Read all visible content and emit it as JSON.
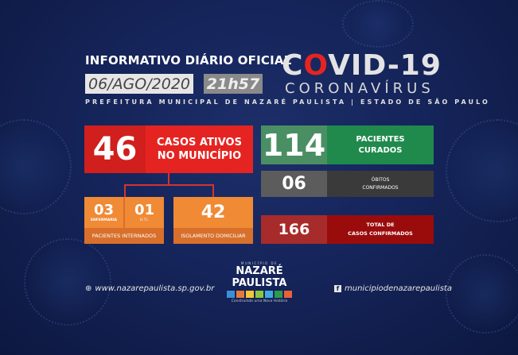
{
  "header": {
    "title": "INFORMATIVO DIÁRIO OFICIAL",
    "date": "06/AGO/2020",
    "time": "21h57",
    "covid_prefix": "C",
    "covid_o": "O",
    "covid_rest": "VID-19",
    "coronavirus": "CORONAVÍRUS",
    "subtitle": "PREFEITURA MUNICIPAL DE NAZARÉ PAULISTA  |  ESTADO DE SÃO PAULO"
  },
  "stats": {
    "active": {
      "value": "46",
      "label_1": "CASOS ATIVOS",
      "label_2": "NO MUNICÍPIO"
    },
    "ward": {
      "value": "03",
      "label": "ENFERMARIA"
    },
    "icu": {
      "value": "01",
      "label": "U.T.I."
    },
    "hospitalized_label": "PACIENTES INTERNADOS",
    "home": {
      "value": "42",
      "label": "ISOLAMENTO DOMICILIAR"
    },
    "recovered": {
      "value": "114",
      "label_1": "PACIENTES",
      "label_2": "CURADOS"
    },
    "deaths": {
      "value": "06",
      "label_1": "ÓBITOS",
      "label_2": "CONFIRMADOS"
    },
    "total": {
      "value": "166",
      "label_1": "TOTAL DE",
      "label_2": "CASOS CONFIRMADOS"
    }
  },
  "footer": {
    "website": "www.nazarepaulista.sp.gov.br",
    "facebook": "municipiodenazarepaulista",
    "logo_top": "MUNICÍPIO DE",
    "logo_name": "NAZARÉ PAULISTA",
    "logo_tagline": "Construindo uma Nova História"
  },
  "colors": {
    "red": "#e52421",
    "dark_red_num": "#d01f1c",
    "green": "#1f8a4c",
    "green_num": "#4a8f63",
    "gray_num": "#5c5c5c",
    "gray_lbl": "#3a3a3a",
    "maroon": "#9a0c0c",
    "maroon_num": "#a82b2b",
    "orange": "#f08a35",
    "orange_strip": "#d8702c",
    "bg": "#15245a"
  }
}
